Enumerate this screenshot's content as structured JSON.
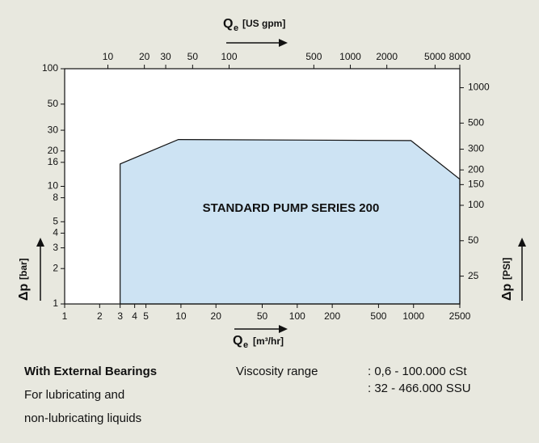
{
  "chart_data": {
    "type": "area",
    "annotation": "STANDARD PUMP SERIES 200",
    "x_label": {
      "main": "Q",
      "sub": "e",
      "unit": "[m³/hr]"
    },
    "x2_label": {
      "main": "Q",
      "sub": "e",
      "unit": "[US gpm]"
    },
    "y_label": {
      "main": "Δp",
      "unit": "[bar]"
    },
    "y2_label": {
      "main": "Δp",
      "unit": "[PSI]"
    },
    "x": [
      3,
      3,
      9.5,
      950,
      2500,
      2500
    ],
    "values": [
      1,
      15.5,
      25,
      24.5,
      11.5,
      1
    ],
    "color": "#cde3f3",
    "log_x": true,
    "log_y": true,
    "xlim": [
      1,
      2500
    ],
    "xticks": [
      1,
      2,
      3,
      4,
      5,
      10,
      20,
      50,
      100,
      200,
      500,
      1000,
      2500
    ],
    "x2lim": [
      4.4,
      8000
    ],
    "x2ticks": [
      10,
      20,
      30,
      50,
      100,
      500,
      1000,
      2000,
      5000,
      8000
    ],
    "ylim": [
      1,
      100
    ],
    "yticks": [
      1,
      2,
      3,
      4,
      5,
      8,
      10,
      16,
      20,
      30,
      50,
      100
    ],
    "y2lim": [
      14.5,
      1450
    ],
    "y2ticks": [
      25,
      50,
      100,
      150,
      200,
      300,
      500,
      1000
    ],
    "notes": {
      "bearing": "With External Bearings",
      "use_1": "For lubricating and",
      "use_2": "non-lubricating liquids",
      "viscosity_label": "Viscosity range",
      "viscosity_1": ": 0,6 - 100.000 cSt",
      "viscosity_2": ": 32 - 466.000 SSU"
    }
  }
}
